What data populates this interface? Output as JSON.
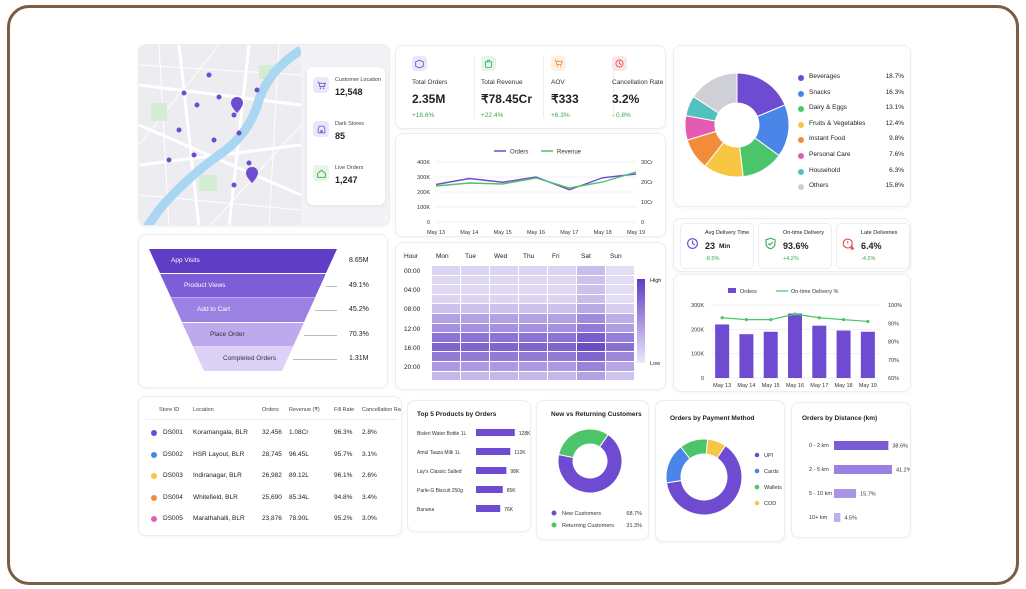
{
  "colors": {
    "purple": "#6f4bd1",
    "purple_light": "#a995e6",
    "green": "#4cc46a",
    "blue": "#4a86e8",
    "yellow": "#f7c744",
    "orange": "#f28c38",
    "pink": "#e35cb2",
    "teal": "#52c0bf",
    "gray": "#cfcfd6"
  },
  "map_stats": [
    {
      "icon": "cart-icon",
      "label": "Customer Location",
      "value": "12,548",
      "color": "#6f4bd1"
    },
    {
      "icon": "store-icon",
      "label": "Dark Stores",
      "value": "85",
      "color": "#7b5bd6"
    },
    {
      "icon": "home-icon",
      "label": "Live Orders",
      "value": "1,247",
      "color": "#3aa84f"
    }
  ],
  "kpis": [
    {
      "icon": "box-icon",
      "label": "Total Orders",
      "value": "2.35M",
      "change": "+18.6%",
      "trend": "up"
    },
    {
      "icon": "bag-icon",
      "label": "Total Revenue",
      "value": "₹78.45Cr",
      "change": "+22.4%",
      "trend": "up"
    },
    {
      "icon": "cart-icon",
      "label": "AOV",
      "value": "₹333",
      "change": "+6.3%",
      "trend": "up"
    },
    {
      "icon": "clock-icon",
      "label": "Cancellation Rate",
      "value": "3.2%",
      "change": "- 0.8%",
      "trend": "down"
    }
  ],
  "category_legend": [
    {
      "label": "Beverages",
      "value": "18.7%",
      "color": "#6f4bd1"
    },
    {
      "label": "Snacks",
      "value": "16.3%",
      "color": "#4a86e8"
    },
    {
      "label": "Dairy & Eggs",
      "value": "13.1%",
      "color": "#4cc46a"
    },
    {
      "label": "Fruits & Vegetables",
      "value": "12.4%",
      "color": "#f7c744"
    },
    {
      "label": "Instant Food",
      "value": "9.8%",
      "color": "#f28c38"
    },
    {
      "label": "Personal Care",
      "value": "7.6%",
      "color": "#e35cb2"
    },
    {
      "label": "Household",
      "value": "6.3%",
      "color": "#52c0bf"
    },
    {
      "label": "Others",
      "value": "15.8%",
      "color": "#cfcfd6"
    }
  ],
  "funnel": [
    {
      "label": "App Visits",
      "value": "8.65M"
    },
    {
      "label": "Product Views",
      "value": "49.1%"
    },
    {
      "label": "Add to Cart",
      "value": "45.2%"
    },
    {
      "label": "Place Order",
      "value": "70.3%"
    },
    {
      "label": "Completed Orders",
      "value": "1.31M"
    }
  ],
  "heatmap": {
    "hour_label": "Hour",
    "days": [
      "Mon",
      "Tue",
      "Wed",
      "Thu",
      "Fri",
      "Sat",
      "Sun"
    ],
    "hours": [
      "00:00",
      "04:00",
      "08:00",
      "12:00",
      "16:00",
      "20:00"
    ],
    "high": "High",
    "low": "Low"
  },
  "delivery_kpis": [
    {
      "icon": "clock-icon",
      "label": "Avg Delivery Time",
      "value": "23",
      "unit": "Min",
      "change": "-8.5%",
      "trend": "good"
    },
    {
      "icon": "shield-check-icon",
      "label": "On-time Delivery",
      "value": "93.6%",
      "change": "+4.2%",
      "trend": "good"
    },
    {
      "icon": "alert-clock-icon",
      "label": "Late Deliveries",
      "value": "6.4%",
      "change": "-4.2%",
      "trend": "good"
    }
  ],
  "stores": {
    "headers": [
      "Store ID",
      "Location",
      "Orders",
      "Revenue (₹)",
      "Fill Rate",
      "Cancellation Rate"
    ],
    "rows": [
      {
        "id": "DS001",
        "location": "Koramangala, BLR",
        "orders": "32,456",
        "revenue": "1.08Cr",
        "fill": "96.3%",
        "cancel": "2.8%",
        "color": "#6f4bd1"
      },
      {
        "id": "DS002",
        "location": "HSR Layout, BLR",
        "orders": "28,745",
        "revenue": "96.45L",
        "fill": "95.7%",
        "cancel": "3.1%",
        "color": "#4a86e8"
      },
      {
        "id": "DS003",
        "location": "Indiranagar, BLR",
        "orders": "26,982",
        "revenue": "89.12L",
        "fill": "96.1%",
        "cancel": "2.6%",
        "color": "#f7c744"
      },
      {
        "id": "DS004",
        "location": "Whitefield, BLR",
        "orders": "25,690",
        "revenue": "85.34L",
        "fill": "94.8%",
        "cancel": "3.4%",
        "color": "#f28c38"
      },
      {
        "id": "DS005",
        "location": "Marathahalli, BLR",
        "orders": "23,876",
        "revenue": "78.90L",
        "fill": "95.2%",
        "cancel": "3.0%",
        "color": "#e35cb2"
      }
    ]
  },
  "top_products": {
    "title": "Top 5 Products by Orders"
  },
  "new_vs_returning": {
    "title": "New vs Returning Customers"
  },
  "payment": {
    "title": "Orders by Payment Method"
  },
  "distance": {
    "title": "Orders by Distance (km)"
  },
  "chart_data": [
    {
      "type": "pie",
      "name": "category-share",
      "categories": [
        "Beverages",
        "Snacks",
        "Dairy & Eggs",
        "Fruits & Vegetables",
        "Instant Food",
        "Personal Care",
        "Household",
        "Others"
      ],
      "values": [
        18.7,
        16.3,
        13.1,
        12.4,
        9.8,
        7.6,
        6.3,
        15.8
      ]
    },
    {
      "type": "line",
      "categories": [
        "May 13",
        "May 14",
        "May 15",
        "May 16",
        "May 17",
        "May 18",
        "May 19"
      ],
      "series": [
        {
          "name": "Orders",
          "axis": "left",
          "values": [
            250000,
            290000,
            265000,
            300000,
            215000,
            295000,
            320000
          ]
        },
        {
          "name": "Revenue",
          "axis": "right",
          "values": [
            18,
            19.5,
            19,
            22,
            17,
            20,
            25
          ]
        }
      ],
      "yticks_left": [
        "400K",
        "300K",
        "200K",
        "100K",
        "0"
      ],
      "yticks_right": [
        "30Cr",
        "20Cr",
        "10Cr",
        "0"
      ],
      "ylim_left": [
        0,
        400000
      ],
      "ylim_right": [
        0,
        30
      ]
    },
    {
      "type": "heatmap",
      "rows": [
        "00:00",
        "04:00",
        "08:00",
        "12:00",
        "16:00",
        "20:00"
      ],
      "columns": [
        "Mon",
        "Tue",
        "Wed",
        "Thu",
        "Fri",
        "Sat",
        "Sun"
      ]
    },
    {
      "type": "bar",
      "categories": [
        "May 13",
        "May 14",
        "May 15",
        "May 16",
        "May 17",
        "May 18",
        "May 19"
      ],
      "series": [
        {
          "name": "Orders",
          "axis": "left",
          "values": [
            220000,
            180000,
            190000,
            265000,
            215000,
            195000,
            190000
          ]
        },
        {
          "name": "On-time Delivery %",
          "axis": "right",
          "type": "line",
          "values": [
            93,
            92,
            92,
            95,
            93,
            92,
            91
          ]
        }
      ],
      "yticks_left": [
        "300K",
        "200K",
        "100K",
        "0"
      ],
      "yticks_right": [
        "100%",
        "90%",
        "80%",
        "70%",
        "60%"
      ],
      "ylim_left": [
        0,
        300000
      ],
      "ylim_right": [
        60,
        100
      ]
    },
    {
      "type": "bar",
      "orientation": "horizontal",
      "title": "Top 5 Products by Orders",
      "categories": [
        "Bisleri Water Bottle 1L",
        "Amul Taaza Milk 1L",
        "Lay's Classic Salted",
        "Parle-G Biscuit 250g",
        "Banana"
      ],
      "values": [
        128,
        112,
        98,
        85,
        76
      ],
      "value_labels": [
        "128K",
        "112K",
        "98K",
        "85K",
        "76K"
      ]
    },
    {
      "type": "pie",
      "title": "New vs Returning Customers",
      "categories": [
        "New Customers",
        "Returning Customers"
      ],
      "values": [
        68.7,
        31.3
      ],
      "value_labels": [
        "68.7%",
        "31.3%"
      ]
    },
    {
      "type": "pie",
      "title": "Orders by Payment Method",
      "categories": [
        "UPI",
        "Cards",
        "Wallets",
        "COD"
      ],
      "values": [
        63,
        17,
        12,
        8
      ]
    },
    {
      "type": "bar",
      "orientation": "horizontal",
      "title": "Orders by Distance (km)",
      "categories": [
        "0 - 2 km",
        "2 - 5 km",
        "5 - 10 km",
        "10+ km"
      ],
      "values": [
        38.6,
        41.2,
        15.7,
        4.5
      ],
      "value_labels": [
        "38.6%",
        "41.2%",
        "15.7%",
        "4.5%"
      ]
    }
  ]
}
